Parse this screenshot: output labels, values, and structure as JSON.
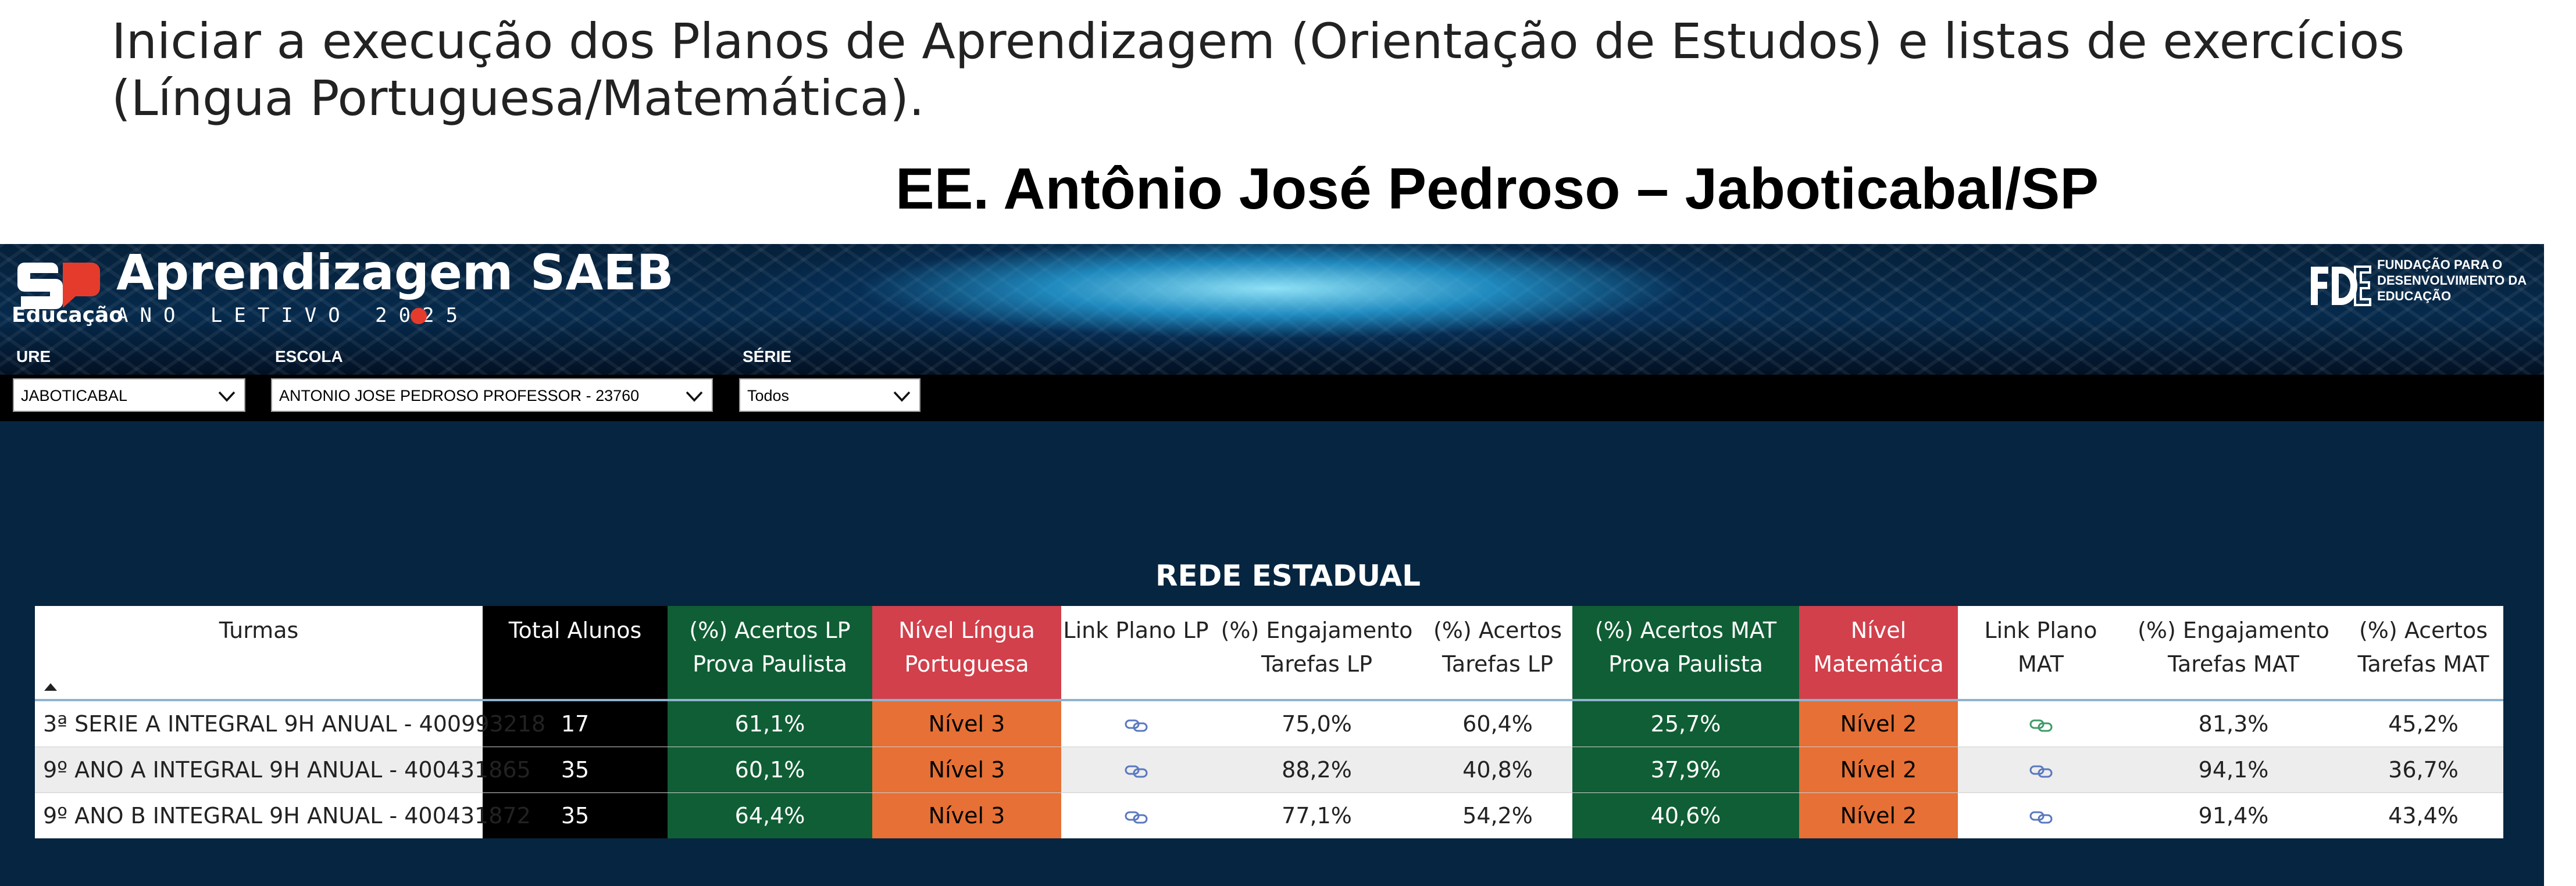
{
  "slide": {
    "title": "Iniciar a execução dos Planos de Aprendizagem (Orientação de Estudos) e listas de exercícios (Língua Portuguesa/Matemática).",
    "subtitle": "EE. Antônio José Pedroso – Jaboticabal/SP"
  },
  "dashboard": {
    "logo_sub": "Educação",
    "title": "Aprendizagem SAEB",
    "year": "ANO LETIVO 2025",
    "partner": "FUNDAÇÃO PARA O DESENVOLVIMENTO DA EDUCAÇÃO",
    "filters": {
      "ure": {
        "label": "URE",
        "value": "JABOTICABAL"
      },
      "escola": {
        "label": "ESCOLA",
        "value": "ANTONIO JOSE PEDROSO PROFESSOR - 23760"
      },
      "serie": {
        "label": "SÉRIE",
        "value": "Todos"
      }
    },
    "section_title": "REDE ESTADUAL",
    "table": {
      "headers": [
        "Turmas",
        "Total Alunos",
        "(%) Acertos LP Prova Paulista",
        "Nível Língua Portuguesa",
        "Link Plano LP",
        "(%) Engajamento Tarefas LP",
        "(%) Acertos Tarefas LP",
        "(%) Acertos MAT Prova Paulista",
        "Nível Matemática",
        "Link Plano MAT",
        "(%) Engajamento Tarefas MAT",
        "(%) Acertos Tarefas MAT"
      ],
      "rows": [
        {
          "turma": "3ª SERIE A INTEGRAL 9H ANUAL - 400993218",
          "total": "17",
          "acertos_lp": "61,1%",
          "nivel_lp": "Nível 3",
          "eng_lp": "75,0%",
          "acertos_tar_lp": "60,4%",
          "acertos_mat": "25,7%",
          "nivel_mat": "Nível 2",
          "eng_mat": "81,3%",
          "acertos_tar_mat": "45,2%"
        },
        {
          "turma": "9º ANO A INTEGRAL 9H ANUAL - 400431865",
          "total": "35",
          "acertos_lp": "60,1%",
          "nivel_lp": "Nível 3",
          "eng_lp": "88,2%",
          "acertos_tar_lp": "40,8%",
          "acertos_mat": "37,9%",
          "nivel_mat": "Nível 2",
          "eng_mat": "94,1%",
          "acertos_tar_mat": "36,7%"
        },
        {
          "turma": "9º ANO B INTEGRAL 9H ANUAL - 400431872",
          "total": "35",
          "acertos_lp": "64,4%",
          "nivel_lp": "Nível 3",
          "eng_lp": "77,1%",
          "acertos_tar_lp": "54,2%",
          "acertos_mat": "40,6%",
          "nivel_mat": "Nível 2",
          "eng_mat": "91,4%",
          "acertos_tar_mat": "43,4%"
        }
      ]
    }
  },
  "colors": {
    "dashboard_bg": "#062540",
    "header_green": "#105e35",
    "header_red": "#d1404b",
    "level_orange": "#e67035",
    "link_lp": "#5a78c0",
    "link_mat": "#3f9a6a"
  },
  "icons": [
    "sp-logo-icon",
    "fde-logo-icon",
    "chevron-down-icon",
    "sort-ascending-icon",
    "link-chain-icon"
  ]
}
